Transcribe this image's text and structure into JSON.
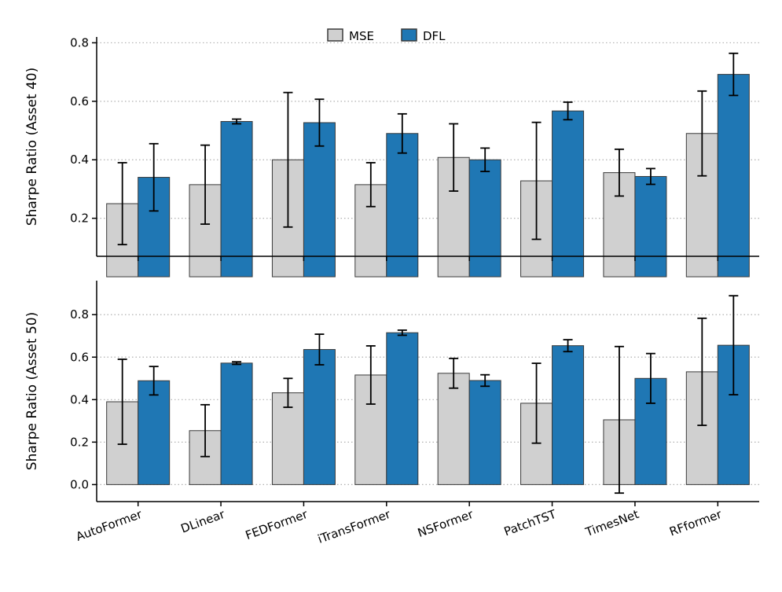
{
  "colors": {
    "MSE": "#d0d0d0",
    "DFL": "#1f77b4",
    "edge": "#3a3a3a",
    "grid": "#b0b0b0"
  },
  "legend": {
    "items": [
      "MSE",
      "DFL"
    ],
    "placement": "top-center"
  },
  "chart_data": [
    {
      "type": "bar",
      "categories": [
        "AutoFormer",
        "DLinear",
        "FEDFormer",
        "iTransFormer",
        "NSFormer",
        "PatchTST",
        "TimesNet",
        "RFformer"
      ],
      "ylabel": "Sharpe Ratio (Asset 40)",
      "ylim": [
        0.07,
        0.82
      ],
      "yticks": [
        0.2,
        0.4,
        0.6,
        0.8
      ],
      "grid": "y-dotted",
      "series": [
        {
          "name": "MSE",
          "values": [
            0.25,
            0.315,
            0.4,
            0.315,
            0.408,
            0.328,
            0.356,
            0.49
          ],
          "err": [
            0.14,
            0.135,
            0.23,
            0.075,
            0.115,
            0.2,
            0.08,
            0.145
          ]
        },
        {
          "name": "DFL",
          "values": [
            0.34,
            0.531,
            0.527,
            0.49,
            0.4,
            0.567,
            0.343,
            0.692
          ],
          "err": [
            0.115,
            0.008,
            0.08,
            0.067,
            0.04,
            0.03,
            0.027,
            0.072
          ]
        }
      ]
    },
    {
      "type": "bar",
      "categories": [
        "AutoFormer",
        "DLinear",
        "FEDFormer",
        "iTransFormer",
        "NSFormer",
        "PatchTST",
        "TimesNet",
        "RFformer"
      ],
      "ylabel": "Sharpe Ratio (Asset 50)",
      "ylim": [
        -0.08,
        0.96
      ],
      "yticks": [
        0.0,
        0.2,
        0.4,
        0.6,
        0.8
      ],
      "grid": "y-dotted",
      "series": [
        {
          "name": "MSE",
          "values": [
            0.39,
            0.254,
            0.432,
            0.516,
            0.524,
            0.383,
            0.305,
            0.531
          ],
          "err": [
            0.2,
            0.122,
            0.068,
            0.137,
            0.07,
            0.188,
            0.345,
            0.252
          ]
        },
        {
          "name": "DFL",
          "values": [
            0.489,
            0.572,
            0.636,
            0.715,
            0.49,
            0.654,
            0.5,
            0.656
          ],
          "err": [
            0.067,
            0.006,
            0.072,
            0.012,
            0.027,
            0.028,
            0.117,
            0.233
          ]
        }
      ]
    }
  ]
}
